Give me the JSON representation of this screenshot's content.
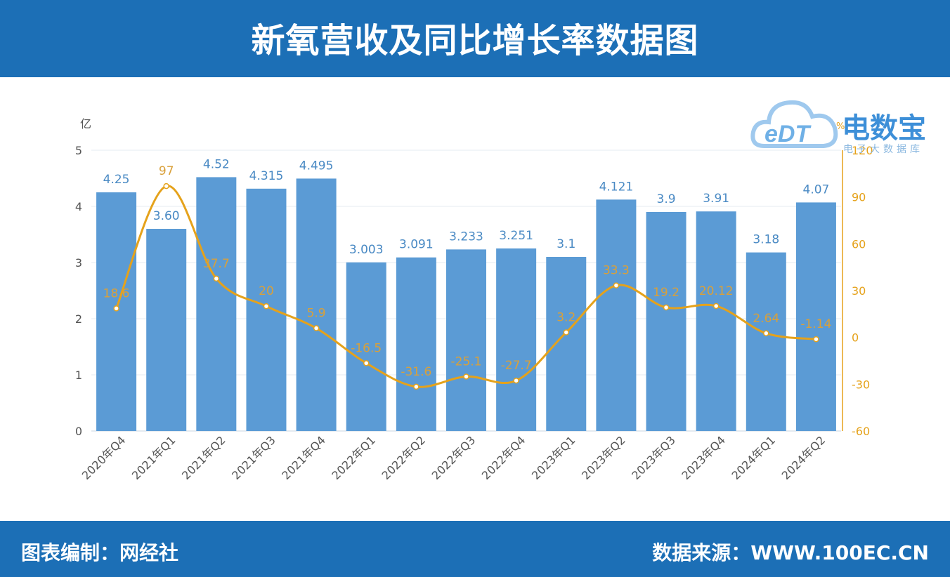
{
  "header": {
    "title": "新氧营收及同比增长率数据图"
  },
  "footer": {
    "left": "图表编制：网经社",
    "right": "数据来源：WWW.100EC.CN"
  },
  "logo": {
    "name": "电数宝",
    "sub": "电子大数据库",
    "mark": "eDT"
  },
  "colors": {
    "header_bg": "#1c6fb6",
    "bar": "#5b9bd5",
    "line": "#e5a21b",
    "line_label": "#d9a03a",
    "bar_label": "#4a8ac4"
  },
  "chart_data": {
    "type": "bar",
    "categories": [
      "2020年Q4",
      "2021年Q1",
      "2021年Q2",
      "2021年Q3",
      "2021年Q4",
      "2022年Q1",
      "2022年Q2",
      "2022年Q3",
      "2022年Q4",
      "2023年Q1",
      "2023年Q2",
      "2023年Q3",
      "2023年Q4",
      "2024年Q1",
      "2024年Q2"
    ],
    "bar_labels": [
      "4.25",
      "3.60",
      "4.52",
      "4.315",
      "4.495",
      "3.003",
      "3.091",
      "3.233",
      "3.251",
      "3.1",
      "4.121",
      "3.9",
      "3.91",
      "3.18",
      "4.07"
    ],
    "line_labels": [
      "18.6",
      "97",
      "37.7",
      "20",
      "5.9",
      "-16.5",
      "-31.6",
      "-25.1",
      "-27.7",
      "3.2",
      "33.3",
      "19.2",
      "20.12",
      "2.64",
      "-1.14"
    ],
    "series": [
      {
        "type": "bar",
        "axis": "left",
        "values": [
          4.25,
          3.6,
          4.52,
          4.315,
          4.495,
          3.003,
          3.091,
          3.233,
          3.251,
          3.1,
          4.121,
          3.9,
          3.91,
          3.18,
          4.07
        ]
      },
      {
        "type": "line",
        "axis": "right",
        "values": [
          18.6,
          97,
          37.7,
          20,
          5.9,
          -16.5,
          -31.6,
          -25.1,
          -27.7,
          3.2,
          33.3,
          19.2,
          20.12,
          2.64,
          -1.14
        ]
      }
    ],
    "y_left": {
      "unit": "亿",
      "ylim": [
        0,
        5
      ],
      "ticks": [
        "0",
        "1",
        "2",
        "3",
        "4",
        "5"
      ]
    },
    "y_right": {
      "unit": "%",
      "ylim": [
        -60,
        120
      ],
      "ticks": [
        "-60",
        "-30",
        "0",
        "30",
        "60",
        "90",
        "120"
      ]
    },
    "grid": true,
    "legend": "none"
  }
}
